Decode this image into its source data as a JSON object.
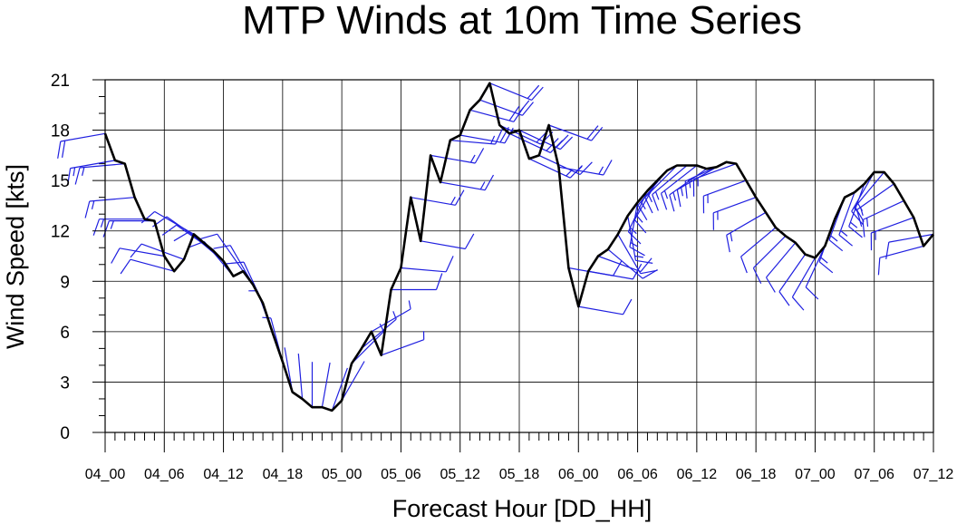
{
  "chart_data": {
    "type": "line",
    "title": "MTP Winds at 10m Time Series",
    "xlabel": "Forecast Hour [DD_HH]",
    "ylabel": "Wind Speed [kts]",
    "ylim": [
      0,
      21
    ],
    "yticks": [
      0,
      3,
      6,
      9,
      12,
      15,
      18,
      21
    ],
    "xlim": [
      0,
      84
    ],
    "xticks": [
      {
        "hour": 0,
        "label": "04_00"
      },
      {
        "hour": 6,
        "label": "04_06"
      },
      {
        "hour": 12,
        "label": "04_12"
      },
      {
        "hour": 18,
        "label": "04_18"
      },
      {
        "hour": 24,
        "label": "05_00"
      },
      {
        "hour": 30,
        "label": "05_06"
      },
      {
        "hour": 36,
        "label": "05_12"
      },
      {
        "hour": 42,
        "label": "05_18"
      },
      {
        "hour": 48,
        "label": "06_00"
      },
      {
        "hour": 54,
        "label": "06_06"
      },
      {
        "hour": 60,
        "label": "06_12"
      },
      {
        "hour": 66,
        "label": "06_18"
      },
      {
        "hour": 72,
        "label": "07_00"
      },
      {
        "hour": 78,
        "label": "07_06"
      },
      {
        "hour": 84,
        "label": "07_12"
      }
    ],
    "grid": true,
    "series": [
      {
        "color": "#000000",
        "x": [
          0,
          1,
          2,
          3,
          4,
          5,
          6,
          7,
          8,
          9,
          10,
          11,
          12,
          13,
          14,
          15,
          16,
          17,
          18,
          19,
          20,
          21,
          22,
          23,
          24,
          25,
          26,
          27,
          28,
          29,
          30,
          31,
          32,
          33,
          34,
          35,
          36,
          37,
          38,
          39,
          40,
          41,
          42,
          43,
          44,
          45,
          46,
          47,
          48,
          49,
          50,
          51,
          52,
          53,
          54,
          55,
          56,
          57,
          58,
          59,
          60,
          61,
          62,
          63,
          64,
          65,
          66,
          67,
          68,
          69,
          70,
          71,
          72,
          73,
          74,
          75,
          76,
          77,
          78,
          79,
          80,
          81,
          82,
          83,
          84
        ],
        "values": [
          17.8,
          16.2,
          16.0,
          14.0,
          12.7,
          12.6,
          10.5,
          9.6,
          10.3,
          11.8,
          11.3,
          10.8,
          10.2,
          9.3,
          9.6,
          8.8,
          7.7,
          5.9,
          4.2,
          2.4,
          2.0,
          1.5,
          1.5,
          1.3,
          1.9,
          4.1,
          5.0,
          6.0,
          4.6,
          8.5,
          9.8,
          14.0,
          11.4,
          16.5,
          14.9,
          17.4,
          17.7,
          19.2,
          19.8,
          20.8,
          18.3,
          17.8,
          18.0,
          16.3,
          16.5,
          18.3,
          15.8,
          9.8,
          7.5,
          9.6,
          10.5,
          10.9,
          11.8,
          12.9,
          13.7,
          14.4,
          15.0,
          15.6,
          15.9,
          15.9,
          15.9,
          15.7,
          15.8,
          16.1,
          16.0,
          15.0,
          14.0,
          13.1,
          12.2,
          11.7,
          11.3,
          10.6,
          10.4,
          11.1,
          12.7,
          14.0,
          14.3,
          14.8,
          15.5,
          15.5,
          14.8,
          13.8,
          12.8,
          11.1,
          11.8
        ]
      }
    ],
    "wind_barbs": {
      "color": "#2020e0",
      "direction_deg": [
        260,
        260,
        265,
        265,
        270,
        270,
        280,
        285,
        290,
        300,
        305,
        305,
        310,
        320,
        325,
        330,
        335,
        340,
        345,
        350,
        355,
        360,
        10,
        20,
        30,
        45,
        50,
        60,
        70,
        90,
        95,
        100,
        100,
        100,
        100,
        95,
        100,
        105,
        110,
        112,
        115,
        115,
        115,
        115,
        115,
        110,
        100,
        100,
        100,
        100,
        110,
        130,
        150,
        170,
        190,
        205,
        210,
        220,
        225,
        230,
        232,
        235,
        240,
        245,
        250,
        250,
        250,
        240,
        230,
        225,
        220,
        215,
        210,
        205,
        200,
        200,
        200,
        200,
        210,
        220,
        235,
        245,
        250,
        255,
        260
      ]
    }
  }
}
